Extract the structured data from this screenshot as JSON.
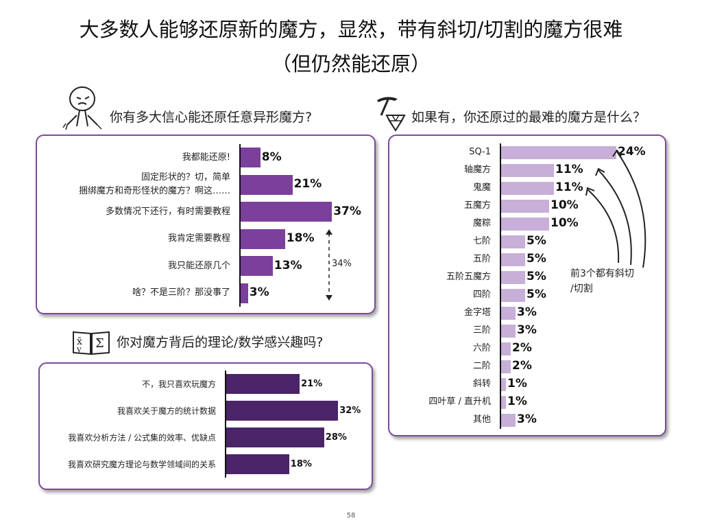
{
  "title": {
    "line1": "大多数人能够还原新的魔方，显然，带有斜切/切割的魔方很难",
    "line2": "（但仍然能还原）"
  },
  "icons": [
    "stick-figure-icon",
    "gem-pickaxe-icon",
    "math-book-icon"
  ],
  "page_number": "58",
  "chart_data": [
    {
      "type": "bar",
      "orientation": "horizontal",
      "heading": "你有多大信心能还原任意异形魔方?",
      "categories": [
        "我都能还原!",
        "固定形状的？切，简单\n捆绑魔方和奇形怪状的魔方？啊这……",
        "多数情况下还行，有时需要教程",
        "我肯定需要教程",
        "我只能还原几个",
        "啥？不是三阶？那没事了"
      ],
      "values": [
        8,
        21,
        37,
        18,
        13,
        3
      ],
      "value_labels": [
        "8%",
        "21%",
        "37%",
        "18%",
        "13%",
        "3%"
      ],
      "color": "#7b3f9c",
      "annotation": "34%",
      "xlim": [
        0,
        40
      ]
    },
    {
      "type": "bar",
      "orientation": "horizontal",
      "heading": "如果有，你还原过的最难的魔方是什么？",
      "categories": [
        "SQ-1",
        "轴魔方",
        "鬼魔",
        "五魔方",
        "魔粽",
        "七阶",
        "五阶",
        "五阶五魔方",
        "四阶",
        "金字塔",
        "三阶",
        "六阶",
        "二阶",
        "斜转",
        "四叶草 / 直升机",
        "其他"
      ],
      "values": [
        24,
        11,
        11,
        10,
        10,
        5,
        5,
        5,
        5,
        3,
        3,
        2,
        2,
        1,
        1,
        3
      ],
      "value_labels": [
        "24%",
        "11%",
        "11%",
        "10%",
        "10%",
        "5%",
        "5%",
        "5%",
        "5%",
        "3%",
        "3%",
        "2%",
        "2%",
        "1%",
        "1%",
        "3%"
      ],
      "color": "#c7afd8",
      "annotation": "前3个都有斜切\n/切割",
      "xlim": [
        0,
        25
      ]
    },
    {
      "type": "bar",
      "orientation": "horizontal",
      "heading": "你对魔方背后的理论/数学感兴趣吗?",
      "categories": [
        "不，我只喜欢玩魔方",
        "我喜欢关于魔方的统计数据",
        "我喜欢分析方法 / 公式集的效率、优缺点",
        "我喜欢研究魔方理论与数学领域间的关系"
      ],
      "values": [
        21,
        32,
        28,
        18
      ],
      "value_labels": [
        "21%",
        "32%",
        "28%",
        "18%"
      ],
      "color": "#4a2466",
      "xlim": [
        0,
        33
      ]
    }
  ]
}
